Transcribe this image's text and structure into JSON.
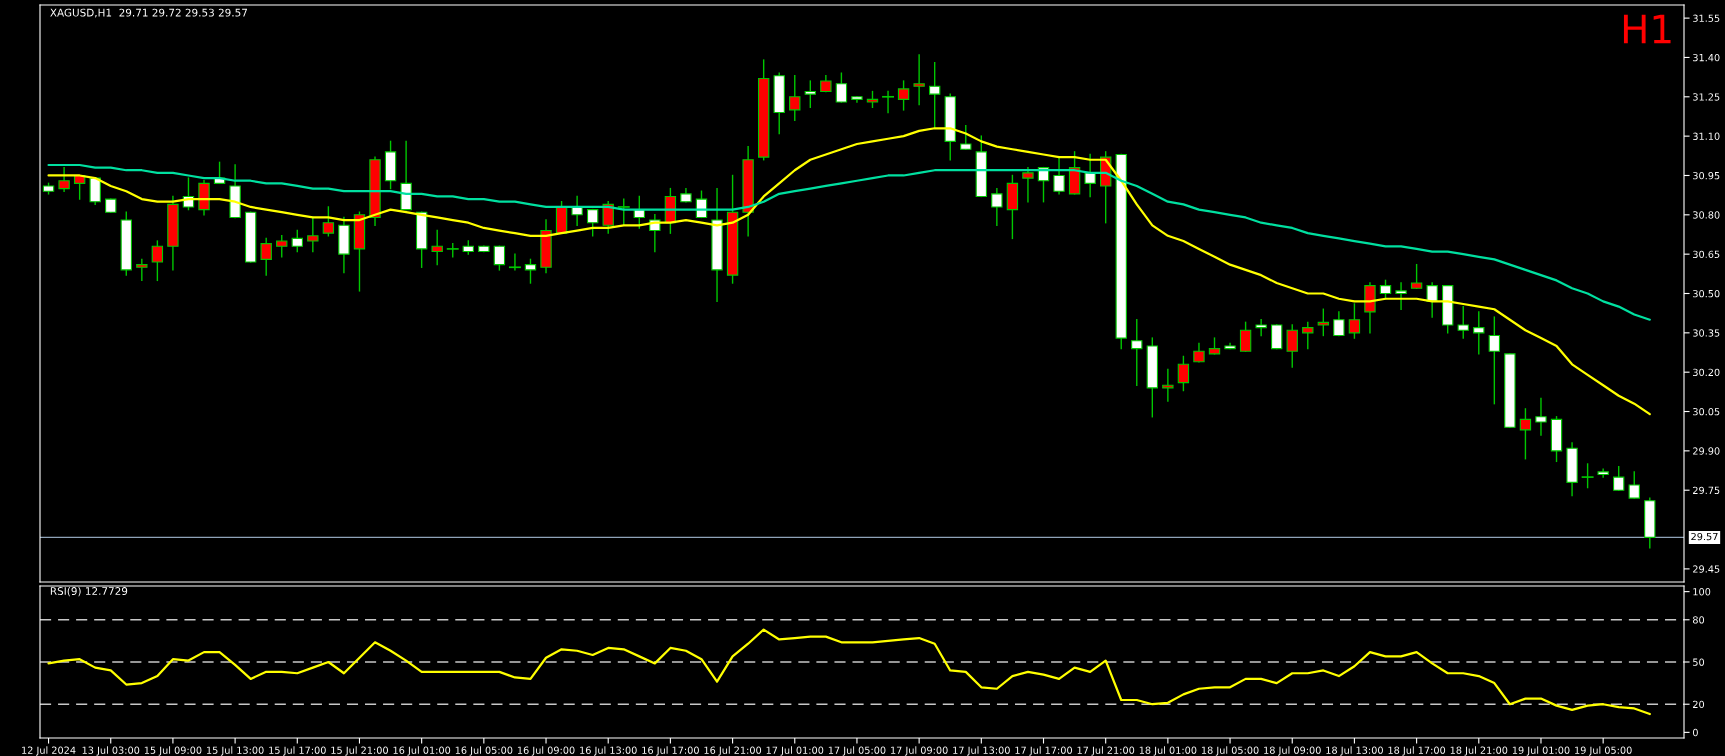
{
  "chart_data": [
    {
      "type": "candlestick",
      "title": "XAGUSD,H1  29.71 29.72 29.53 29.57",
      "annotations": [
        "H1"
      ],
      "categories": [
        null,
        null,
        null,
        null,
        null,
        null,
        null,
        null,
        null,
        null,
        null,
        null,
        null,
        null,
        null,
        null,
        null,
        null,
        null,
        null,
        null,
        null,
        null,
        null,
        null,
        null,
        null,
        null,
        null,
        null,
        null,
        null,
        null,
        null,
        null,
        null,
        null,
        null,
        null,
        null,
        null,
        null,
        null,
        null,
        null,
        null,
        null,
        null,
        null,
        null,
        null,
        null,
        null,
        null,
        null,
        null,
        null,
        null,
        null,
        null,
        null,
        null,
        null,
        null,
        null,
        null,
        null,
        null,
        null,
        null,
        null,
        null,
        null,
        null,
        null,
        null,
        null,
        null,
        null,
        null,
        null,
        null,
        null,
        null,
        null,
        null,
        null,
        null,
        null,
        null,
        null,
        null,
        null,
        null,
        null,
        null,
        null,
        null,
        null,
        null,
        null,
        null,
        null,
        null
      ],
      "ohlc": [
        [
          30.91,
          30.92,
          30.88,
          30.89
        ],
        [
          30.9,
          30.98,
          30.89,
          30.93
        ],
        [
          30.92,
          30.95,
          30.86,
          30.95
        ],
        [
          30.94,
          30.94,
          30.84,
          30.85
        ],
        [
          30.86,
          30.86,
          30.81,
          30.81
        ],
        [
          30.78,
          30.81,
          30.57,
          30.59
        ],
        [
          30.6,
          30.63,
          30.55,
          30.61
        ],
        [
          30.62,
          30.7,
          30.55,
          30.68
        ],
        [
          30.68,
          30.87,
          30.59,
          30.84
        ],
        [
          30.87,
          30.94,
          30.82,
          30.83
        ],
        [
          30.82,
          30.93,
          30.8,
          30.92
        ],
        [
          30.94,
          31.0,
          30.92,
          30.92
        ],
        [
          30.91,
          30.99,
          30.79,
          30.79
        ],
        [
          30.81,
          30.81,
          30.62,
          30.62
        ],
        [
          30.63,
          30.71,
          30.57,
          30.69
        ],
        [
          30.68,
          30.72,
          30.64,
          30.7
        ],
        [
          30.71,
          30.74,
          30.66,
          30.68
        ],
        [
          30.7,
          30.79,
          30.66,
          30.72
        ],
        [
          30.73,
          30.83,
          30.72,
          30.77
        ],
        [
          30.76,
          30.79,
          30.58,
          30.65
        ],
        [
          30.67,
          30.81,
          30.51,
          30.8
        ],
        [
          30.79,
          31.02,
          30.76,
          31.01
        ],
        [
          31.04,
          31.08,
          30.9,
          30.93
        ],
        [
          30.92,
          31.08,
          30.82,
          30.82
        ],
        [
          30.81,
          30.81,
          30.6,
          30.67
        ],
        [
          30.66,
          30.74,
          30.61,
          30.68
        ],
        [
          30.67,
          30.69,
          30.64,
          30.67
        ],
        [
          30.68,
          30.7,
          30.65,
          30.66
        ],
        [
          30.68,
          30.68,
          30.66,
          30.66
        ],
        [
          30.68,
          30.68,
          30.59,
          30.61
        ],
        [
          30.6,
          30.65,
          30.59,
          30.6
        ],
        [
          30.61,
          30.63,
          30.54,
          30.59
        ],
        [
          30.6,
          30.78,
          30.58,
          30.74
        ],
        [
          30.73,
          30.85,
          30.73,
          30.83
        ],
        [
          30.83,
          30.87,
          30.76,
          30.8
        ],
        [
          30.82,
          30.82,
          30.72,
          30.77
        ],
        [
          30.76,
          30.85,
          30.73,
          30.84
        ],
        [
          30.83,
          30.86,
          30.76,
          30.83
        ],
        [
          30.82,
          30.87,
          30.75,
          30.79
        ],
        [
          30.78,
          30.8,
          30.66,
          30.74
        ],
        [
          30.77,
          30.9,
          30.73,
          30.87
        ],
        [
          30.88,
          30.9,
          30.85,
          30.85
        ],
        [
          30.86,
          30.89,
          30.79,
          30.79
        ],
        [
          30.78,
          30.9,
          30.47,
          30.59
        ],
        [
          30.57,
          30.95,
          30.54,
          30.81
        ],
        [
          30.81,
          31.06,
          30.72,
          31.01
        ],
        [
          31.02,
          31.39,
          31.01,
          31.32
        ],
        [
          31.33,
          31.34,
          31.11,
          31.19
        ],
        [
          31.2,
          31.33,
          31.16,
          31.25
        ],
        [
          31.27,
          31.31,
          31.21,
          31.26
        ],
        [
          31.27,
          31.33,
          31.27,
          31.31
        ],
        [
          31.3,
          31.34,
          31.23,
          31.23
        ],
        [
          31.25,
          31.25,
          31.23,
          31.24
        ],
        [
          31.23,
          31.27,
          31.21,
          31.24
        ],
        [
          31.25,
          31.27,
          31.19,
          31.25
        ],
        [
          31.24,
          31.31,
          31.2,
          31.28
        ],
        [
          31.29,
          31.41,
          31.22,
          31.3
        ],
        [
          31.29,
          31.38,
          31.13,
          31.26
        ],
        [
          31.25,
          31.26,
          31.01,
          31.08
        ],
        [
          31.07,
          31.14,
          31.05,
          31.05
        ],
        [
          31.04,
          31.1,
          30.87,
          30.87
        ],
        [
          30.88,
          30.9,
          30.76,
          30.83
        ],
        [
          30.82,
          30.95,
          30.71,
          30.92
        ],
        [
          30.94,
          30.98,
          30.85,
          30.96
        ],
        [
          30.98,
          30.98,
          30.85,
          30.93
        ],
        [
          30.95,
          31.02,
          30.88,
          30.89
        ],
        [
          30.88,
          31.04,
          30.88,
          30.98
        ],
        [
          30.96,
          31.03,
          30.87,
          30.92
        ],
        [
          30.91,
          31.04,
          30.77,
          31.02
        ],
        [
          31.03,
          31.03,
          30.29,
          30.33
        ],
        [
          30.32,
          30.4,
          30.15,
          30.29
        ],
        [
          30.3,
          30.33,
          30.03,
          30.14
        ],
        [
          30.14,
          30.21,
          30.09,
          30.15
        ],
        [
          30.16,
          30.26,
          30.13,
          30.23
        ],
        [
          30.24,
          30.31,
          30.24,
          30.28
        ],
        [
          30.27,
          30.33,
          30.27,
          30.29
        ],
        [
          30.3,
          30.31,
          30.29,
          30.29
        ],
        [
          30.28,
          30.39,
          30.28,
          30.36
        ],
        [
          30.38,
          30.4,
          30.34,
          30.37
        ],
        [
          30.38,
          30.38,
          30.29,
          30.29
        ],
        [
          30.28,
          30.38,
          30.22,
          30.36
        ],
        [
          30.35,
          30.39,
          30.29,
          30.37
        ],
        [
          30.38,
          30.44,
          30.34,
          30.39
        ],
        [
          30.4,
          30.43,
          30.34,
          30.34
        ],
        [
          30.35,
          30.46,
          30.33,
          30.4
        ],
        [
          30.43,
          30.54,
          30.35,
          30.53
        ],
        [
          30.53,
          30.55,
          30.48,
          30.5
        ],
        [
          30.51,
          30.54,
          30.44,
          30.5
        ],
        [
          30.52,
          30.61,
          30.52,
          30.54
        ],
        [
          30.53,
          30.54,
          30.41,
          30.47
        ],
        [
          30.53,
          30.53,
          30.35,
          30.38
        ],
        [
          30.38,
          30.45,
          30.33,
          30.36
        ],
        [
          30.37,
          30.43,
          30.27,
          30.35
        ],
        [
          30.34,
          30.41,
          30.08,
          30.28
        ],
        [
          30.27,
          30.27,
          29.99,
          29.99
        ],
        [
          29.98,
          30.06,
          29.87,
          30.02
        ],
        [
          30.03,
          30.1,
          29.96,
          30.01
        ],
        [
          30.02,
          30.03,
          29.86,
          29.9
        ],
        [
          29.91,
          29.93,
          29.73,
          29.78
        ],
        [
          29.8,
          29.85,
          29.76,
          29.8
        ],
        [
          29.82,
          29.83,
          29.8,
          29.81
        ],
        [
          29.8,
          29.84,
          29.75,
          29.75
        ],
        [
          29.77,
          29.82,
          29.72,
          29.72
        ],
        [
          29.71,
          29.72,
          29.53,
          29.57
        ]
      ],
      "color": "#00c800",
      "colors": [
        "#ffffff",
        "#ff0000",
        "#ff0000",
        "#ffffff",
        "#ffffff",
        "#ffffff",
        "#ff0000",
        "#ff0000",
        "#ff0000",
        "#ffffff",
        "#ff0000",
        "#ffffff",
        "#ffffff",
        "#ffffff",
        "#ff0000",
        "#ff0000",
        "#ffffff",
        "#ff0000",
        "#ff0000",
        "#ffffff",
        "#ff0000",
        "#ff0000",
        "#ffffff",
        "#ffffff",
        "#ffffff",
        "#ff0000",
        "#00c800",
        "#ffffff",
        "#ffffff",
        "#ffffff",
        "#00c800",
        "#ffffff",
        "#ff0000",
        "#ff0000",
        "#ffffff",
        "#ffffff",
        "#ff0000",
        "#00c800",
        "#ffffff",
        "#ffffff",
        "#ff0000",
        "#ffffff",
        "#ffffff",
        "#ffffff",
        "#ff0000",
        "#ff0000",
        "#ff0000",
        "#ffffff",
        "#ff0000",
        "#ffffff",
        "#ff0000",
        "#ffffff",
        "#ffffff",
        "#ff0000",
        "#00c800",
        "#ff0000",
        "#ff0000",
        "#ffffff",
        "#ffffff",
        "#ffffff",
        "#ffffff",
        "#ffffff",
        "#ff0000",
        "#ff0000",
        "#ffffff",
        "#ffffff",
        "#ff0000",
        "#ffffff",
        "#ff0000",
        "#ffffff",
        "#ffffff",
        "#ffffff",
        "#ff0000",
        "#ff0000",
        "#ff0000",
        "#ff0000",
        "#ffffff",
        "#ff0000",
        "#ffffff",
        "#ffffff",
        "#ff0000",
        "#ff0000",
        "#ff0000",
        "#ffffff",
        "#ff0000",
        "#ff0000",
        "#ffffff",
        "#ffffff",
        "#ff0000",
        "#ffffff",
        "#ffffff",
        "#ffffff",
        "#ffffff",
        "#ffffff",
        "#ffffff",
        "#ff0000",
        "#ffffff",
        "#ffffff",
        "#ffffff",
        "#00c800",
        "#ffffff",
        "#ffffff",
        "#ffffff",
        "#ffffff"
      ],
      "series": [
        {
          "type": "line",
          "color": "#ffff00",
          "values": [
            30.95,
            30.95,
            30.95,
            30.94,
            30.91,
            30.89,
            30.86,
            30.85,
            30.85,
            30.86,
            30.86,
            30.86,
            30.85,
            30.83,
            30.82,
            30.81,
            30.8,
            30.79,
            30.79,
            30.78,
            30.78,
            30.8,
            30.82,
            30.81,
            30.8,
            30.79,
            30.78,
            30.77,
            30.75,
            30.74,
            30.73,
            30.72,
            30.72,
            30.73,
            30.74,
            30.75,
            30.75,
            30.76,
            30.76,
            30.77,
            30.77,
            30.78,
            30.77,
            30.76,
            30.77,
            30.8,
            30.87,
            30.92,
            30.97,
            31.01,
            31.03,
            31.05,
            31.07,
            31.08,
            31.09,
            31.1,
            31.12,
            31.13,
            31.13,
            31.11,
            31.08,
            31.06,
            31.05,
            31.04,
            31.03,
            31.02,
            31.02,
            31.01,
            31.01,
            30.93,
            30.84,
            30.76,
            30.72,
            30.7,
            30.67,
            30.64,
            30.61,
            30.59,
            30.57,
            30.54,
            30.52,
            30.5,
            30.5,
            30.48,
            30.47,
            30.47,
            30.48,
            30.48,
            30.48,
            30.47,
            30.47,
            30.46,
            30.45,
            30.44,
            30.4,
            30.36,
            30.33,
            30.3,
            30.23,
            30.19,
            30.15,
            30.11,
            30.08,
            30.04
          ]
        },
        {
          "type": "line",
          "color": "#00e0a0",
          "values": [
            30.99,
            30.99,
            30.99,
            30.98,
            30.98,
            30.97,
            30.97,
            30.96,
            30.96,
            30.95,
            30.94,
            30.94,
            30.93,
            30.93,
            30.92,
            30.92,
            30.91,
            30.9,
            30.9,
            30.89,
            30.89,
            30.89,
            30.89,
            30.88,
            30.88,
            30.87,
            30.87,
            30.86,
            30.86,
            30.85,
            30.85,
            30.84,
            30.83,
            30.83,
            30.83,
            30.83,
            30.83,
            30.82,
            30.82,
            30.82,
            30.82,
            30.82,
            30.82,
            30.82,
            30.82,
            30.83,
            30.85,
            30.88,
            30.89,
            30.9,
            30.91,
            30.92,
            30.93,
            30.94,
            30.95,
            30.95,
            30.96,
            30.97,
            30.97,
            30.97,
            30.97,
            30.97,
            30.97,
            30.97,
            30.97,
            30.97,
            30.97,
            30.96,
            30.96,
            30.93,
            30.91,
            30.88,
            30.85,
            30.84,
            30.82,
            30.81,
            30.8,
            30.79,
            30.77,
            30.76,
            30.75,
            30.73,
            30.72,
            30.71,
            30.7,
            30.69,
            30.68,
            30.68,
            30.67,
            30.66,
            30.66,
            30.65,
            30.64,
            30.63,
            30.61,
            30.59,
            30.57,
            30.55,
            30.52,
            30.5,
            30.47,
            30.45,
            30.42,
            30.4
          ]
        }
      ],
      "ylim": [
        29.4,
        31.6
      ],
      "yticks": [
        {
          "value": 29.45,
          "label": "29.45"
        },
        {
          "value": 29.75,
          "label": "29.75"
        },
        {
          "value": 29.9,
          "label": "29.90"
        },
        {
          "value": 30.05,
          "label": "30.05"
        },
        {
          "value": 30.2,
          "label": "30.20"
        },
        {
          "value": 30.35,
          "label": "30.35"
        },
        {
          "value": 30.5,
          "label": "30.50"
        },
        {
          "value": 30.65,
          "label": "30.65"
        },
        {
          "value": 30.8,
          "label": "30.80"
        },
        {
          "value": 30.95,
          "label": "30.95"
        },
        {
          "value": 31.1,
          "label": "31.10"
        },
        {
          "value": 31.25,
          "label": "31.25"
        },
        {
          "value": 31.4,
          "label": "31.40"
        },
        {
          "value": 31.55,
          "label": "31.55"
        }
      ],
      "ref_lines": [
        {
          "axis": "y",
          "value": 29.57,
          "label": "29.57",
          "color": "#8fa3b8",
          "line_style": "solid"
        }
      ]
    },
    {
      "type": "line",
      "title": "RSI(9) 12.7729",
      "categories": [
        "12 Jul 2024",
        null,
        null,
        null,
        "13 Jul 03:00",
        null,
        null,
        null,
        "15 Jul 09:00",
        null,
        null,
        null,
        "15 Jul 13:00",
        null,
        null,
        null,
        "15 Jul 17:00",
        null,
        null,
        null,
        "15 Jul 21:00",
        null,
        null,
        null,
        "16 Jul 01:00",
        null,
        null,
        null,
        "16 Jul 05:00",
        null,
        null,
        null,
        "16 Jul 09:00",
        null,
        null,
        null,
        "16 Jul 13:00",
        null,
        null,
        null,
        "16 Jul 17:00",
        null,
        null,
        null,
        "16 Jul 21:00",
        null,
        null,
        null,
        "17 Jul 01:00",
        null,
        null,
        null,
        "17 Jul 05:00",
        null,
        null,
        null,
        "17 Jul 09:00",
        null,
        null,
        null,
        "17 Jul 13:00",
        null,
        null,
        null,
        "17 Jul 17:00",
        null,
        null,
        null,
        "17 Jul 21:00",
        null,
        null,
        null,
        "18 Jul 01:00",
        null,
        null,
        null,
        "18 Jul 05:00",
        null,
        null,
        null,
        "18 Jul 09:00",
        null,
        null,
        null,
        "18 Jul 13:00",
        null,
        null,
        null,
        "18 Jul 17:00",
        null,
        null,
        null,
        "18 Jul 21:00",
        null,
        null,
        null,
        "19 Jul 01:00",
        null,
        null,
        null,
        "19 Jul 05:00",
        null,
        null,
        null
      ],
      "series": [
        {
          "color": "#ffff00",
          "values": [
            49,
            51,
            52,
            46,
            44,
            34,
            35,
            40,
            52,
            51,
            57,
            57,
            48,
            38,
            43,
            43,
            42,
            46,
            50,
            42,
            53,
            64,
            58,
            51,
            43,
            43,
            43,
            43,
            43,
            43,
            39,
            38,
            53,
            59,
            58,
            55,
            60,
            59,
            54,
            49,
            60,
            58,
            52,
            36,
            54,
            63,
            73,
            66,
            67,
            68,
            68,
            64,
            64,
            64,
            65,
            66,
            67,
            63,
            44,
            43,
            32,
            31,
            40,
            43,
            41,
            38,
            46,
            43,
            51,
            23,
            23,
            20,
            21,
            27,
            31,
            32,
            32,
            38,
            38,
            35,
            42,
            42,
            44,
            40,
            47,
            57,
            54,
            54,
            57,
            49,
            42,
            42,
            40,
            35,
            20,
            24,
            24,
            19,
            16,
            19,
            20,
            18,
            17,
            13
          ]
        }
      ],
      "ylim": [
        -4,
        104
      ],
      "yticks": [
        0,
        20,
        50,
        80,
        100
      ],
      "ref_lines": [
        {
          "axis": "y",
          "value": 80,
          "color": "#c8c8c8",
          "line_style": "dashed"
        },
        {
          "axis": "y",
          "value": 50,
          "color": "#c8c8c8",
          "line_style": "dashed"
        },
        {
          "axis": "y",
          "value": 20,
          "color": "#c8c8c8",
          "line_style": "dashed"
        }
      ]
    }
  ]
}
